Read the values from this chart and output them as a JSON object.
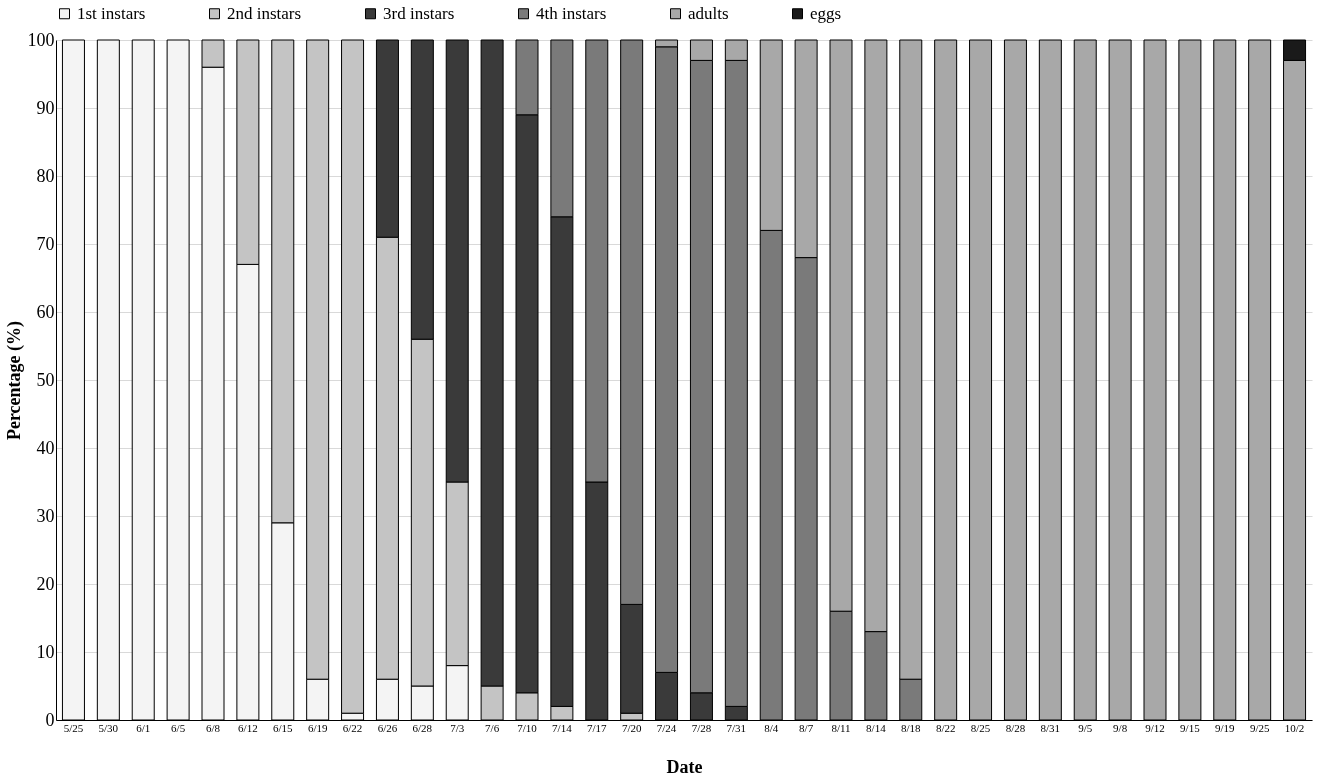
{
  "chart_data": {
    "type": "bar",
    "stacked": true,
    "xlabel": "Date",
    "ylabel": "Percentage (%)",
    "categories": [
      "5/25",
      "5/30",
      "6/1",
      "6/5",
      "6/8",
      "6/12",
      "6/15",
      "6/19",
      "6/22",
      "6/26",
      "6/28",
      "7/3",
      "7/6",
      "7/10",
      "7/14",
      "7/17",
      "7/20",
      "7/24",
      "7/28",
      "7/31",
      "8/4",
      "8/7",
      "8/11",
      "8/14",
      "8/18",
      "8/22",
      "8/25",
      "8/28",
      "8/31",
      "9/5",
      "9/8",
      "9/12",
      "9/15",
      "9/19",
      "9/25",
      "10/2"
    ],
    "series": [
      {
        "name": "1st instars",
        "color": "#f4f4f4",
        "values": [
          100,
          100,
          100,
          100,
          96,
          67,
          29,
          6,
          1,
          6,
          5,
          8,
          null,
          null,
          null,
          null,
          null,
          null,
          null,
          null,
          null,
          null,
          null,
          null,
          null,
          null,
          null,
          null,
          null,
          null,
          null,
          null,
          null,
          null,
          null,
          null
        ]
      },
      {
        "name": "2nd instars",
        "color": "#c4c4c4",
        "values": [
          null,
          null,
          null,
          null,
          4,
          33,
          71,
          94,
          99,
          65,
          51,
          27,
          5,
          4,
          2,
          null,
          1,
          null,
          null,
          null,
          null,
          null,
          null,
          null,
          null,
          null,
          null,
          null,
          null,
          null,
          null,
          null,
          null,
          null,
          null,
          null
        ]
      },
      {
        "name": "3rd instars",
        "color": "#3a3a3a",
        "values": [
          null,
          null,
          null,
          null,
          null,
          null,
          null,
          null,
          null,
          29,
          44,
          65,
          95,
          85,
          72,
          35,
          16,
          7,
          4,
          2,
          null,
          null,
          null,
          null,
          null,
          null,
          null,
          null,
          null,
          null,
          null,
          null,
          null,
          null,
          null,
          null
        ]
      },
      {
        "name": "4th instars",
        "color": "#7a7a7a",
        "values": [
          null,
          null,
          null,
          null,
          null,
          null,
          null,
          null,
          null,
          null,
          null,
          null,
          null,
          11,
          26,
          65,
          83,
          92,
          93,
          95,
          72,
          68,
          16,
          13,
          6,
          null,
          null,
          null,
          null,
          null,
          null,
          null,
          null,
          null,
          null,
          null
        ]
      },
      {
        "name": "adults",
        "color": "#a8a8a8",
        "values": [
          null,
          null,
          null,
          null,
          null,
          null,
          null,
          null,
          null,
          null,
          null,
          null,
          null,
          null,
          null,
          null,
          null,
          1,
          3,
          3,
          28,
          32,
          84,
          87,
          94,
          100,
          100,
          100,
          100,
          100,
          100,
          100,
          100,
          100,
          100,
          97
        ]
      },
      {
        "name": "eggs",
        "color": "#1a1a1a",
        "values": [
          null,
          null,
          null,
          null,
          null,
          null,
          null,
          null,
          null,
          null,
          null,
          null,
          null,
          null,
          null,
          null,
          null,
          null,
          null,
          null,
          null,
          null,
          null,
          null,
          null,
          null,
          null,
          null,
          null,
          null,
          null,
          null,
          null,
          null,
          null,
          3
        ]
      }
    ],
    "ylim": [
      0,
      100
    ],
    "yticks": [
      0,
      10,
      20,
      30,
      40,
      50,
      60,
      70,
      80,
      90,
      100
    ],
    "grid": "y",
    "legend": "top"
  }
}
